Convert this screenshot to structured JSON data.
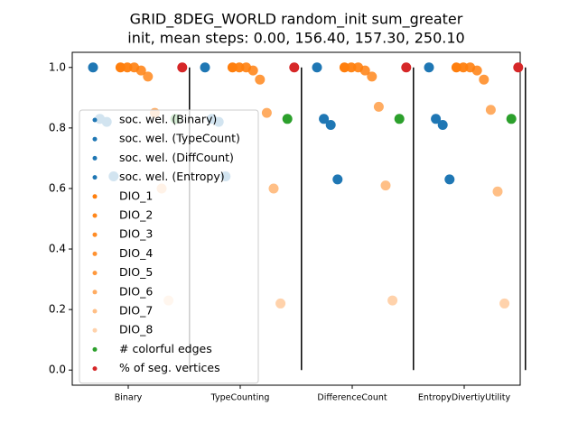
{
  "chart_data": {
    "type": "strip",
    "title": "GRID_8DEG_WORLD random_init sum_greater",
    "subtitle": "init, mean steps: 0.00, 156.40, 157.30, 250.10",
    "categories": [
      "Binary",
      "TypeCounting",
      "DifferenceCount",
      "EntropyDivertiyUtility"
    ],
    "ylim": [
      -0.05,
      1.05
    ],
    "yticks": [
      {
        "value": 0,
        "label": "0.0"
      },
      {
        "value": 0.2,
        "label": "0.2"
      },
      {
        "value": 0.4,
        "label": "0.4"
      },
      {
        "value": 0.6,
        "label": "0.6"
      },
      {
        "value": 0.8,
        "label": "0.8"
      },
      {
        "value": 1,
        "label": "1.0"
      }
    ],
    "legend": "lower left",
    "series": [
      {
        "name": "soc. wel. (Binary)",
        "color": "#1f77b4",
        "alpha": 1,
        "values": [
          1.0,
          1.0,
          1.0,
          1.0
        ]
      },
      {
        "name": "soc. wel. (TypeCount)",
        "color": "#1f77b4",
        "alpha": 1,
        "values": [
          0.83,
          0.83,
          0.83,
          0.83
        ]
      },
      {
        "name": "soc. wel. (DiffCount)",
        "color": "#1f77b4",
        "alpha": 1,
        "values": [
          0.82,
          0.82,
          0.81,
          0.81
        ]
      },
      {
        "name": "soc. wel. (Entropy)",
        "color": "#1f77b4",
        "alpha": 1,
        "values": [
          0.64,
          0.64,
          0.63,
          0.63
        ]
      },
      {
        "name": "DIO_1",
        "color": "#ff7f0e",
        "alpha": 1,
        "values": [
          1.0,
          1.0,
          1.0,
          1.0
        ]
      },
      {
        "name": "DIO_2",
        "color": "#ff7f0e",
        "alpha": 0.95,
        "values": [
          1.0,
          1.0,
          1.0,
          1.0
        ]
      },
      {
        "name": "DIO_3",
        "color": "#ff7f0e",
        "alpha": 0.9,
        "values": [
          1.0,
          1.0,
          1.0,
          1.0
        ]
      },
      {
        "name": "DIO_4",
        "color": "#ff7f0e",
        "alpha": 0.85,
        "values": [
          0.99,
          0.99,
          0.99,
          0.99
        ]
      },
      {
        "name": "DIO_5",
        "color": "#ff7f0e",
        "alpha": 0.8,
        "values": [
          0.97,
          0.96,
          0.97,
          0.96
        ]
      },
      {
        "name": "DIO_6",
        "color": "#ff7f0e",
        "alpha": 0.65,
        "values": [
          0.85,
          0.85,
          0.87,
          0.86
        ]
      },
      {
        "name": "DIO_7",
        "color": "#ff7f0e",
        "alpha": 0.5,
        "values": [
          0.6,
          0.6,
          0.61,
          0.59
        ]
      },
      {
        "name": "DIO_8",
        "color": "#ff7f0e",
        "alpha": 0.35,
        "values": [
          0.23,
          0.22,
          0.23,
          0.22
        ]
      },
      {
        "name": "# colorful edges",
        "color": "#2ca02c",
        "alpha": 1,
        "values": [
          0.83,
          0.83,
          0.83,
          0.83
        ]
      },
      {
        "name": "% of seg. vertices",
        "color": "#d62728",
        "alpha": 1,
        "values": [
          1.0,
          1.0,
          1.0,
          1.0
        ]
      }
    ]
  }
}
